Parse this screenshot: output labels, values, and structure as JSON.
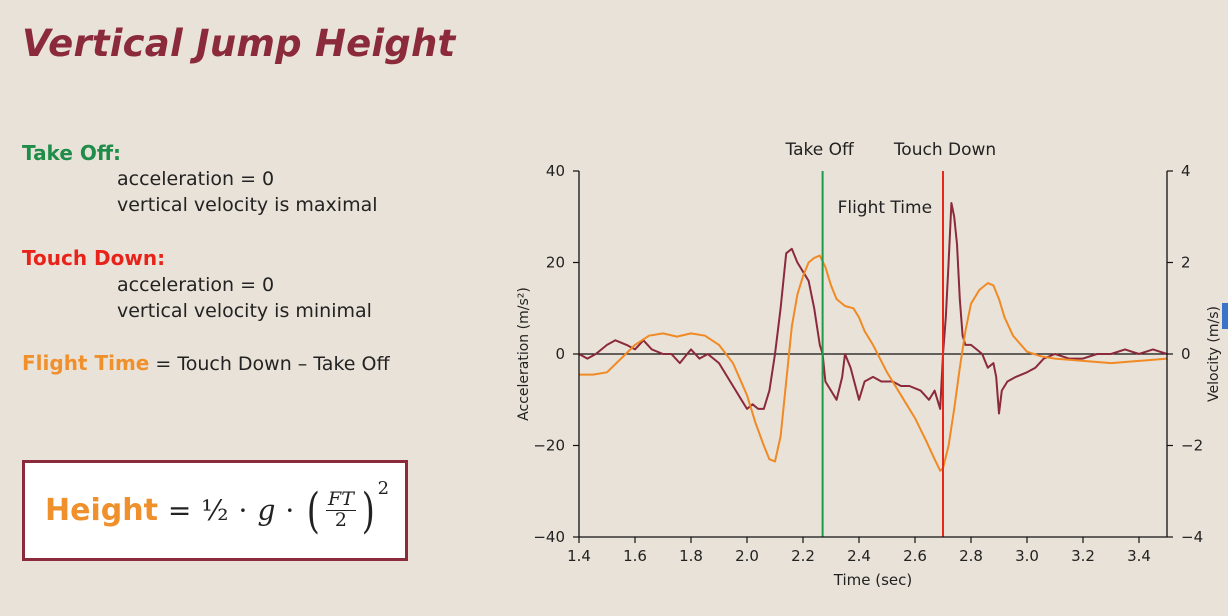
{
  "slide": {
    "title": "Vertical Jump Height",
    "takeoff": {
      "heading": "Take Off:",
      "line1": "acceleration = 0",
      "line2": "vertical velocity is maximal"
    },
    "touchdown": {
      "heading": "Touch Down:",
      "line1": "acceleration = 0",
      "line2": "vertical velocity is minimal"
    },
    "flight_time": {
      "label": "Flight Time",
      "rest": " = Touch Down – Take Off"
    },
    "formula": {
      "label": "Height",
      "eq": "=",
      "half": "½",
      "dot": "·",
      "g": "g",
      "numerator": "FT",
      "denominator": "2",
      "exponent": "2"
    }
  },
  "colors": {
    "acceleration": "#8b2a3a",
    "velocity": "#f08a24",
    "takeoff_line": "#1f9a4a",
    "touchdown_line": "#e8281a",
    "title": "#8a2a3a"
  },
  "chart_data": {
    "type": "line",
    "xlabel": "Time (sec)",
    "ylabel_left": "Acceleration (m/s²)",
    "ylabel_right": "Velocity (m/s)",
    "xlim": [
      1.4,
      3.5
    ],
    "ylim_left": [
      -40,
      40
    ],
    "ylim_right": [
      -4,
      4
    ],
    "x_ticks": [
      "1.4",
      "1.6",
      "1.8",
      "2.0",
      "2.2",
      "2.4",
      "2.6",
      "2.8",
      "3.0",
      "3.2",
      "3.4"
    ],
    "y_ticks_left": [
      "−40",
      "−20",
      "0",
      "20",
      "40"
    ],
    "y_ticks_right": [
      "−4",
      "−2",
      "0",
      "2",
      "4"
    ],
    "annotations": {
      "takeoff": "Take Off",
      "touchdown": "Touch Down",
      "flight_time": "Flight Time"
    },
    "vertical_lines": {
      "takeoff_x": 2.27,
      "touchdown_x": 2.7
    },
    "series": [
      {
        "axis": "left",
        "x": [
          1.4,
          1.43,
          1.46,
          1.5,
          1.53,
          1.57,
          1.6,
          1.63,
          1.66,
          1.7,
          1.73,
          1.76,
          1.8,
          1.83,
          1.86,
          1.9,
          1.93,
          1.96,
          1.98,
          2.0,
          2.02,
          2.04,
          2.06,
          2.08,
          2.1,
          2.12,
          2.14,
          2.16,
          2.18,
          2.2,
          2.22,
          2.24,
          2.26,
          2.27,
          2.28,
          2.3,
          2.32,
          2.34,
          2.35,
          2.37,
          2.4,
          2.42,
          2.45,
          2.48,
          2.52,
          2.55,
          2.58,
          2.62,
          2.65,
          2.67,
          2.69,
          2.7,
          2.71,
          2.72,
          2.73,
          2.74,
          2.75,
          2.76,
          2.77,
          2.78,
          2.8,
          2.82,
          2.84,
          2.86,
          2.88,
          2.89,
          2.9,
          2.91,
          2.93,
          2.96,
          3.0,
          3.03,
          3.06,
          3.1,
          3.15,
          3.2,
          3.25,
          3.3,
          3.35,
          3.4,
          3.45,
          3.5
        ],
        "values": [
          0,
          -1,
          0,
          2,
          3,
          2,
          1,
          3,
          1,
          0,
          0,
          -2,
          1,
          -1,
          0,
          -2,
          -5,
          -8,
          -10,
          -12,
          -11,
          -12,
          -12,
          -8,
          0,
          10,
          22,
          23,
          20,
          18,
          16,
          10,
          2,
          0,
          -6,
          -8,
          -10,
          -5,
          0,
          -3,
          -10,
          -6,
          -5,
          -6,
          -6,
          -7,
          -7,
          -8,
          -10,
          -8,
          -12,
          0,
          8,
          20,
          33,
          30,
          24,
          12,
          4,
          2,
          2,
          1,
          0,
          -3,
          -2,
          -5,
          -13,
          -8,
          -6,
          -5,
          -4,
          -3,
          -1,
          0,
          -1,
          -1,
          0,
          0,
          1,
          0,
          1,
          0
        ]
      },
      {
        "axis": "right",
        "x": [
          1.4,
          1.45,
          1.5,
          1.55,
          1.6,
          1.65,
          1.7,
          1.75,
          1.8,
          1.85,
          1.9,
          1.95,
          2.0,
          2.03,
          2.06,
          2.08,
          2.1,
          2.12,
          2.14,
          2.16,
          2.18,
          2.2,
          2.22,
          2.24,
          2.26,
          2.28,
          2.3,
          2.32,
          2.35,
          2.38,
          2.4,
          2.42,
          2.45,
          2.5,
          2.55,
          2.6,
          2.64,
          2.67,
          2.69,
          2.7,
          2.72,
          2.74,
          2.76,
          2.78,
          2.8,
          2.83,
          2.86,
          2.88,
          2.9,
          2.92,
          2.95,
          3.0,
          3.05,
          3.1,
          3.2,
          3.3,
          3.4,
          3.5
        ],
        "values": [
          -0.45,
          -0.45,
          -0.4,
          -0.1,
          0.2,
          0.4,
          0.45,
          0.38,
          0.45,
          0.4,
          0.2,
          -0.2,
          -0.9,
          -1.5,
          -2.0,
          -2.3,
          -2.35,
          -1.8,
          -0.6,
          0.6,
          1.3,
          1.7,
          2.0,
          2.1,
          2.15,
          1.9,
          1.5,
          1.2,
          1.05,
          1.0,
          0.8,
          0.5,
          0.2,
          -0.4,
          -0.9,
          -1.4,
          -1.9,
          -2.3,
          -2.55,
          -2.5,
          -2.0,
          -1.2,
          -0.3,
          0.5,
          1.1,
          1.4,
          1.55,
          1.5,
          1.2,
          0.8,
          0.4,
          0.05,
          -0.05,
          -0.1,
          -0.15,
          -0.2,
          -0.15,
          -0.1
        ]
      }
    ]
  }
}
